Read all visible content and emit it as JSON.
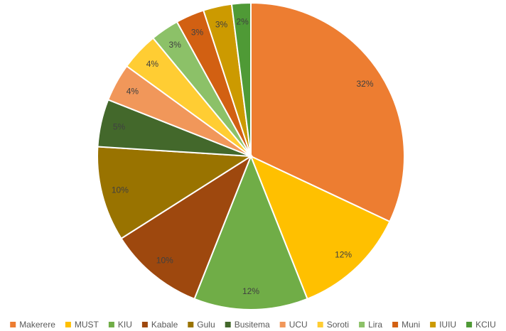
{
  "chart_data": {
    "type": "pie",
    "title": "",
    "legend_position": "bottom",
    "categories": [
      "Makerere",
      "MUST",
      "KIU",
      "Kabale",
      "Gulu",
      "Busitema",
      "UCU",
      "Soroti",
      "Lira",
      "Muni",
      "IUIU",
      "KCIU"
    ],
    "values": [
      32,
      12,
      12,
      10,
      10,
      5,
      4,
      4,
      3,
      3,
      3,
      2
    ],
    "labels": [
      "32%",
      "12%",
      "12%",
      "10%",
      "10%",
      "5%",
      "4%",
      "4%",
      "3%",
      "3%",
      "3%",
      "2%"
    ],
    "colors": [
      "#ED7D31",
      "#FFC000",
      "#70AD47",
      "#9E480E",
      "#997300",
      "#43682B",
      "#F1975A",
      "#FFCD33",
      "#8CC168",
      "#D26012",
      "#CC9A00",
      "#4F9A36"
    ]
  }
}
